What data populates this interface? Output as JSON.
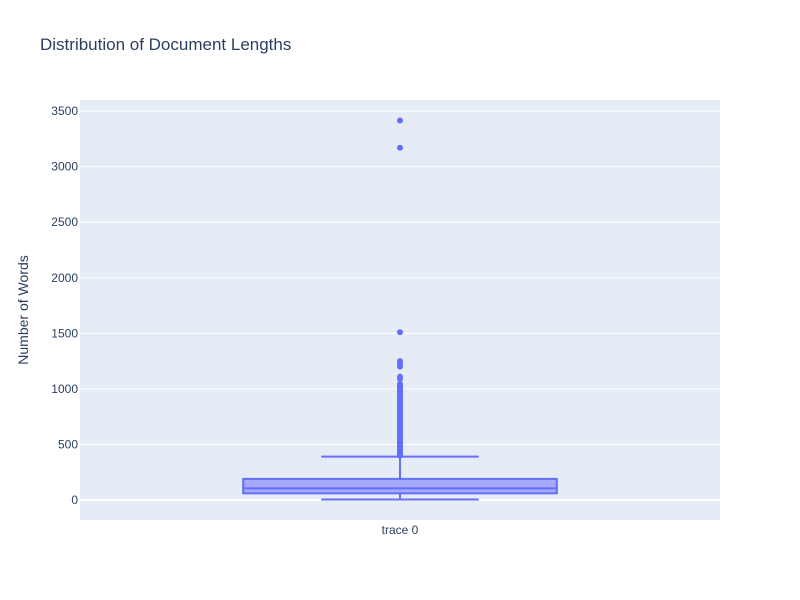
{
  "chart_data": {
    "type": "box",
    "title": "Distribution of Document Lengths",
    "xlabel": "",
    "ylabel": "Number of Words",
    "categories": [
      "trace 0"
    ],
    "yticks": [
      0,
      500,
      1000,
      1500,
      2000,
      2500,
      3000,
      3500
    ],
    "ylim": [
      -180,
      3600
    ],
    "grid": true,
    "colors": {
      "plot_background": "#e5ecf6",
      "grid": "#ffffff",
      "box_line": "#636efa",
      "box_fill": "#a5aafc",
      "text": "#2a3f5f"
    },
    "series": [
      {
        "category": "trace 0",
        "min": 5,
        "q1": 60,
        "median": 105,
        "q3": 190,
        "upper_fence": 390,
        "outliers": [
          400,
          410,
          420,
          430,
          440,
          450,
          460,
          470,
          480,
          490,
          500,
          510,
          520,
          530,
          540,
          550,
          560,
          570,
          580,
          590,
          600,
          610,
          620,
          630,
          640,
          650,
          660,
          670,
          680,
          690,
          700,
          710,
          720,
          730,
          740,
          750,
          760,
          770,
          780,
          790,
          800,
          810,
          820,
          830,
          840,
          850,
          860,
          870,
          880,
          890,
          900,
          910,
          920,
          930,
          940,
          950,
          960,
          970,
          980,
          990,
          1000,
          1010,
          1020,
          1030,
          1045,
          1090,
          1110,
          1200,
          1230,
          1250,
          1510,
          3170,
          3415
        ]
      }
    ]
  }
}
